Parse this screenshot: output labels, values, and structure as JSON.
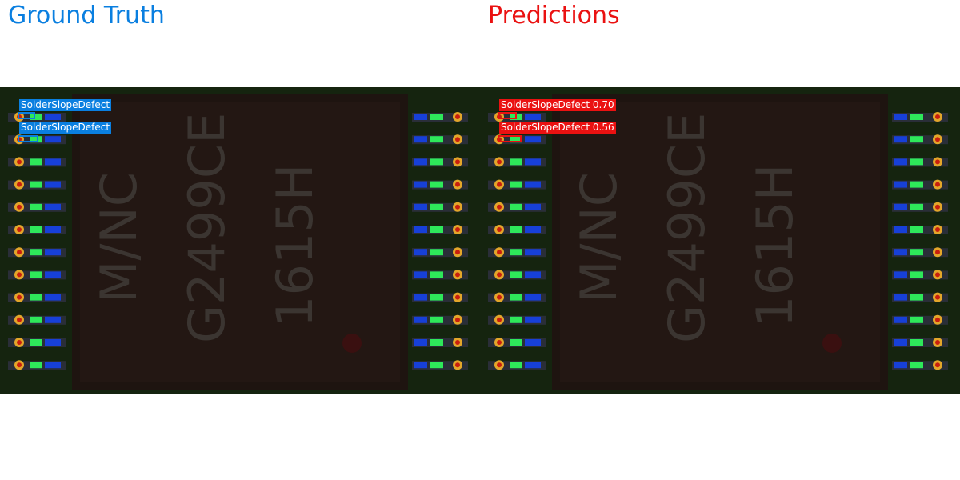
{
  "colors": {
    "ground_truth": "#0a7fe0",
    "prediction": "#ea1111"
  },
  "ground_truth": {
    "title": "Ground Truth",
    "detections": [
      {
        "label": "SolderSlopeDefect"
      },
      {
        "label": "SolderSlopeDefect"
      }
    ]
  },
  "predictions": {
    "title": "Predictions",
    "detections": [
      {
        "label": "SolderSlopeDefect",
        "score": "0.70"
      },
      {
        "label": "SolderSlopeDefect",
        "score": "0.56"
      }
    ]
  }
}
